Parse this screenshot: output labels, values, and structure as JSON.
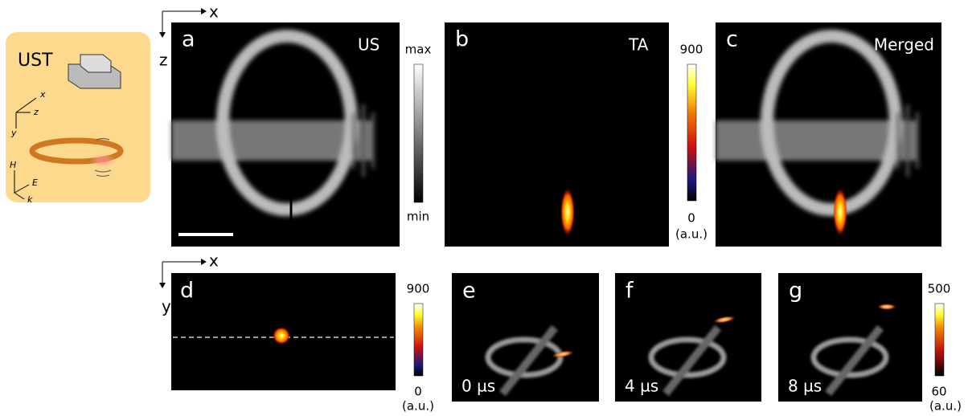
{
  "inset": {
    "title": "UST",
    "axes1": [
      "x",
      "z",
      "y"
    ],
    "axes2": [
      "H",
      "E",
      "k"
    ]
  },
  "top_axes": {
    "x": "x",
    "z": "z"
  },
  "bottom_axes": {
    "x": "x",
    "y": "y"
  },
  "panels": [
    {
      "letter": "a",
      "label": "US"
    },
    {
      "letter": "b",
      "label": "TA"
    },
    {
      "letter": "c",
      "label": "Merged"
    },
    {
      "letter": "d"
    },
    {
      "letter": "e",
      "label": "0 µs"
    },
    {
      "letter": "f",
      "label": "4 µs"
    },
    {
      "letter": "g",
      "label": "8 µs"
    }
  ],
  "colorbars": [
    {
      "max": "max",
      "min": "min"
    },
    {
      "max": "900",
      "min": "0",
      "unit": "(a.u.)"
    },
    {
      "max": "900",
      "min": "0",
      "unit": "(a.u.)"
    },
    {
      "max": "500",
      "min": "60",
      "unit": "(a.u.)"
    }
  ]
}
